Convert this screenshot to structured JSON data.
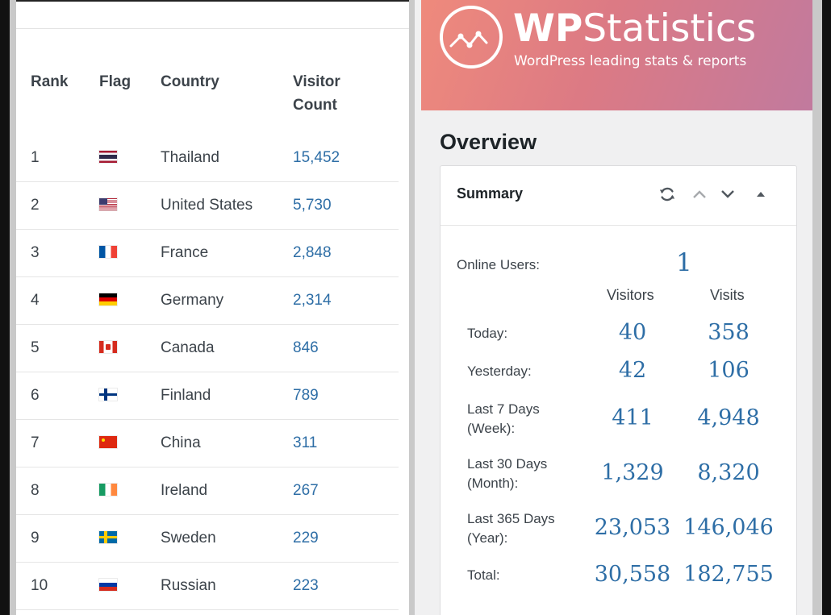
{
  "countries_table": {
    "headers": {
      "rank": "Rank",
      "flag": "Flag",
      "country": "Country",
      "visitor_count_line1": "Visitor",
      "visitor_count_line2": "Count"
    },
    "rows": [
      {
        "rank": "1",
        "flag": "flag-thailand-icon",
        "country": "Thailand",
        "count": "15,452"
      },
      {
        "rank": "2",
        "flag": "flag-united-states-icon",
        "country": "United States",
        "count": "5,730"
      },
      {
        "rank": "3",
        "flag": "flag-france-icon",
        "country": "France",
        "count": "2,848"
      },
      {
        "rank": "4",
        "flag": "flag-germany-icon",
        "country": "Germany",
        "count": "2,314"
      },
      {
        "rank": "5",
        "flag": "flag-canada-icon",
        "country": "Canada",
        "count": "846"
      },
      {
        "rank": "6",
        "flag": "flag-finland-icon",
        "country": "Finland",
        "count": "789"
      },
      {
        "rank": "7",
        "flag": "flag-china-icon",
        "country": "China",
        "count": "311"
      },
      {
        "rank": "8",
        "flag": "flag-ireland-icon",
        "country": "Ireland",
        "count": "267"
      },
      {
        "rank": "9",
        "flag": "flag-sweden-icon",
        "country": "Sweden",
        "count": "229"
      },
      {
        "rank": "10",
        "flag": "flag-russia-icon",
        "country": "Russian",
        "count": "223"
      }
    ]
  },
  "banner": {
    "brand_part1": "WP",
    "brand_part2": "Statistics",
    "tagline": "WordPress leading stats & reports",
    "logo_icon": "chart-line-circle-icon"
  },
  "overview": {
    "heading": "Overview",
    "summary": {
      "title": "Summary",
      "header_icons": [
        "refresh-icon",
        "move-up-icon",
        "move-down-icon",
        "collapse-icon"
      ],
      "online_users_label": "Online Users:",
      "online_users_value": "1",
      "col_visitors": "Visitors",
      "col_visits": "Visits",
      "rows": [
        {
          "label": "Today:",
          "visitors": "40",
          "visits": "358"
        },
        {
          "label": "Yesterday:",
          "visitors": "42",
          "visits": "106"
        },
        {
          "label_line1": "Last 7 Days",
          "label_line2": "(Week):",
          "visitors": "411",
          "visits": "4,948"
        },
        {
          "label_line1": "Last 30 Days",
          "label_line2": "(Month):",
          "visitors": "1,329",
          "visits": "8,320"
        },
        {
          "label_line1": "Last 365 Days",
          "label_line2": "(Year):",
          "visitors": "23,053",
          "visits": "146,046"
        },
        {
          "label": "Total:",
          "visitors": "30,558",
          "visits": "182,755"
        }
      ]
    }
  },
  "colors": {
    "link_blue": "#2e6ea6",
    "text_dark": "#3c434a",
    "banner_start": "#ef8a7c",
    "banner_end": "#c17a9e"
  }
}
